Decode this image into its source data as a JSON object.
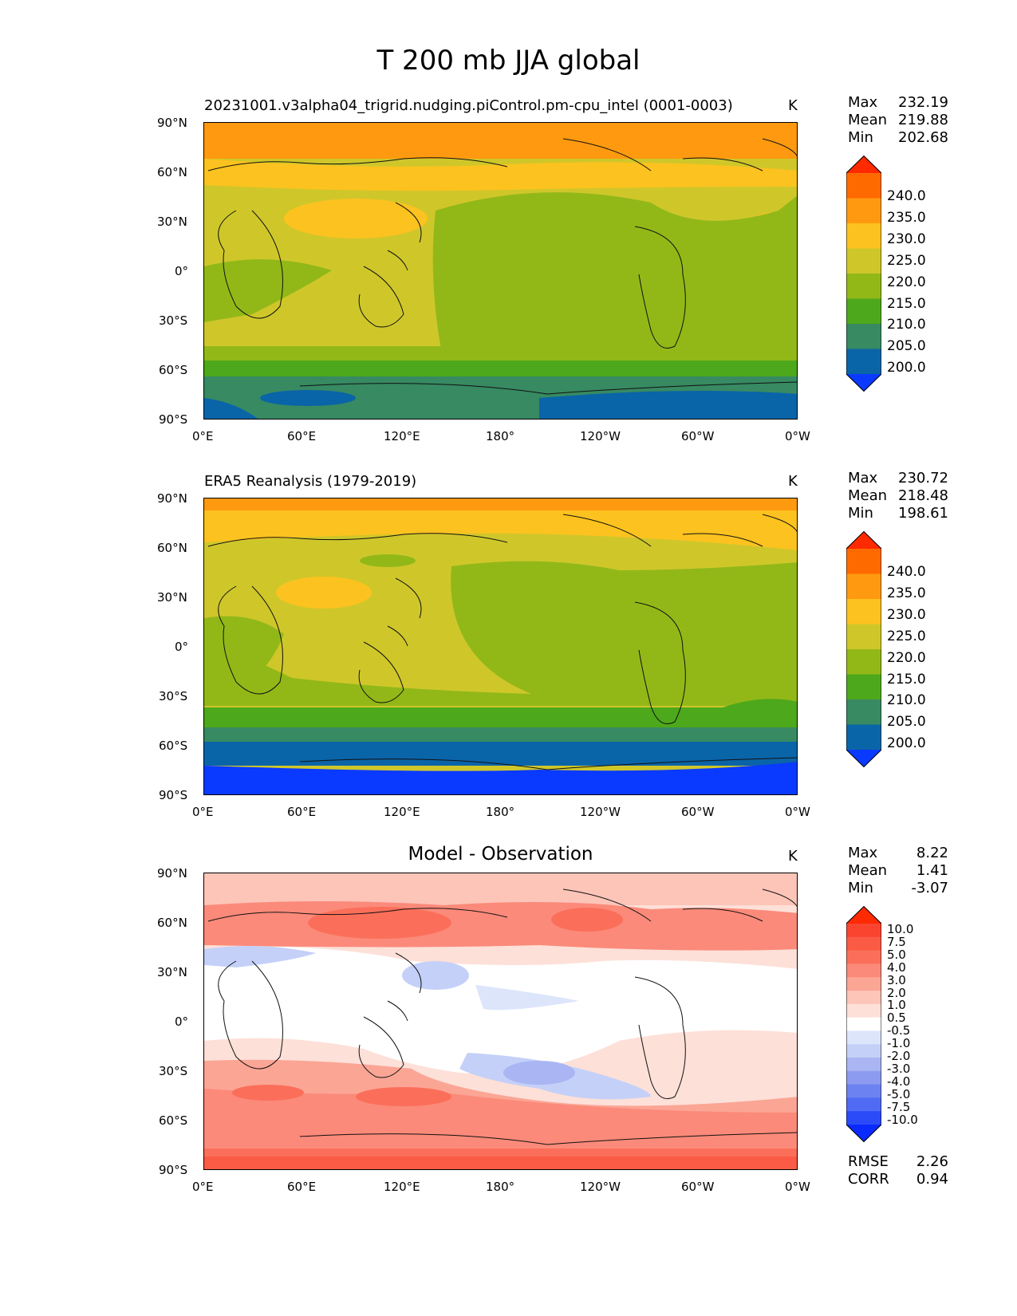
{
  "figure": {
    "title": "T 200 mb JJA global"
  },
  "panels": [
    {
      "title": "20231001.v3alpha04_trigrid.nudging.piControl.pm-cpu_intel (0001-0003)",
      "units": "K",
      "stats": {
        "max_label": "Max",
        "max": "232.19",
        "mean_label": "Mean",
        "mean": "219.88",
        "min_label": "Min",
        "min": "202.68"
      },
      "colorbar": {
        "labels": [
          "240.0",
          "235.0",
          "230.0",
          "225.0",
          "220.0",
          "215.0",
          "210.0",
          "205.0",
          "200.0"
        ],
        "colors": [
          "#ff2a00",
          "#ff6a00",
          "#ff9a10",
          "#fcc21f",
          "#cfc72a",
          "#92b818",
          "#4ea81b",
          "#378a62",
          "#0a64a8",
          "#0a3aff"
        ]
      }
    },
    {
      "title": "ERA5 Reanalysis (1979-2019)",
      "units": "K",
      "stats": {
        "max_label": "Max",
        "max": "230.72",
        "mean_label": "Mean",
        "mean": "218.48",
        "min_label": "Min",
        "min": "198.61"
      },
      "colorbar": {
        "labels": [
          "240.0",
          "235.0",
          "230.0",
          "225.0",
          "220.0",
          "215.0",
          "210.0",
          "205.0",
          "200.0"
        ],
        "colors": [
          "#ff2a00",
          "#ff6a00",
          "#ff9a10",
          "#fcc21f",
          "#cfc72a",
          "#92b818",
          "#4ea81b",
          "#378a62",
          "#0a64a8",
          "#0a3aff"
        ]
      }
    },
    {
      "title": "Model - Observation",
      "units": "K",
      "stats": {
        "max_label": "Max",
        "max": "8.22",
        "mean_label": "Mean",
        "mean": "1.41",
        "min_label": "Min",
        "min": "-3.07"
      },
      "metrics": {
        "rmse_label": "RMSE",
        "rmse": "2.26",
        "corr_label": "CORR",
        "corr": "0.94"
      },
      "colorbar": {
        "labels": [
          "10.0",
          "7.5",
          "5.0",
          "4.0",
          "3.0",
          "2.0",
          "1.0",
          "0.5",
          "-0.5",
          "-1.0",
          "-2.0",
          "-3.0",
          "-4.0",
          "-5.0",
          "-7.5",
          "-10.0"
        ],
        "colors": [
          "#ff2a00",
          "#fb4430",
          "#fb5a45",
          "#fb6f5a",
          "#fb8a7a",
          "#fba595",
          "#fdc4b8",
          "#fde0d8",
          "#ffffff",
          "#dde5fb",
          "#c4d0f8",
          "#a9b6f3",
          "#8c9bef",
          "#6c82f0",
          "#4f6af3",
          "#2b4bf8",
          "#0a2aff"
        ]
      }
    }
  ],
  "axes": {
    "lat_ticks": [
      "90°N",
      "60°N",
      "30°N",
      "0°",
      "30°S",
      "60°S",
      "90°S"
    ],
    "lon_ticks": [
      "0°E",
      "60°E",
      "120°E",
      "180°",
      "120°W",
      "60°W",
      "0°W"
    ]
  }
}
